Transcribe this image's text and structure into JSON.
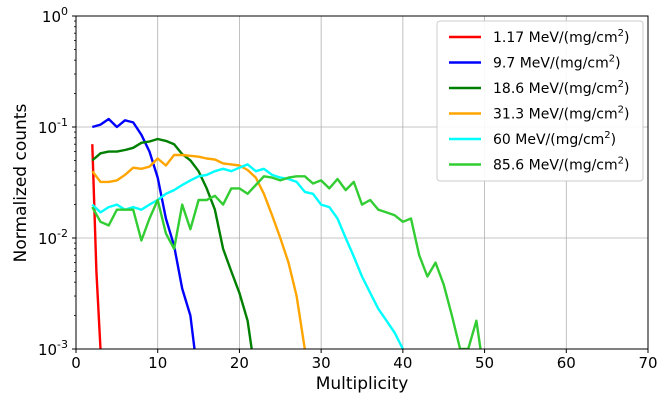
{
  "chart_data": {
    "type": "line",
    "xlabel": "Multiplicity",
    "ylabel": "Normalized counts",
    "xlim": [
      0,
      70
    ],
    "ylim": [
      0.001,
      1
    ],
    "yscale": "log",
    "grid": true,
    "legend_placement": "top-right",
    "x_ticks": [
      "0",
      "10",
      "20",
      "30",
      "40",
      "50",
      "60",
      "70"
    ],
    "y_ticks": [
      {
        "base": "10",
        "exp": "0",
        "value": 1
      },
      {
        "base": "10",
        "exp": "-1",
        "value": 0.1
      },
      {
        "base": "10",
        "exp": "-2",
        "value": 0.01
      },
      {
        "base": "10",
        "exp": "-3",
        "value": 0.001
      }
    ],
    "series": [
      {
        "name": "1.17 MeV/(mg/cm",
        "sup": "2",
        "name_end": ")",
        "color": "#ff0000",
        "x": [
          2,
          2.5,
          3
        ],
        "y": [
          0.07,
          0.005,
          0.001
        ]
      },
      {
        "name": "9.7 MeV/(mg/cm",
        "sup": "2",
        "name_end": ")",
        "color": "#0000ff",
        "x": [
          2,
          3,
          4,
          5,
          6,
          7,
          8,
          9,
          10,
          11,
          12,
          13,
          14,
          14.5
        ],
        "y": [
          0.1,
          0.105,
          0.118,
          0.1,
          0.115,
          0.11,
          0.085,
          0.06,
          0.035,
          0.015,
          0.0085,
          0.0035,
          0.002,
          0.001
        ]
      },
      {
        "name": "18.6 MeV/(mg/cm",
        "sup": "2",
        "name_end": ")",
        "color": "#008000",
        "x": [
          2,
          3,
          4,
          5,
          6,
          7,
          8,
          9,
          10,
          11,
          12,
          13,
          14,
          15,
          16,
          17,
          18,
          19,
          20,
          21,
          21.5
        ],
        "y": [
          0.05,
          0.058,
          0.06,
          0.06,
          0.062,
          0.065,
          0.072,
          0.074,
          0.078,
          0.075,
          0.07,
          0.057,
          0.05,
          0.04,
          0.028,
          0.018,
          0.008,
          0.005,
          0.0032,
          0.0018,
          0.001
        ]
      },
      {
        "name": "31.3 MeV/(mg/cm",
        "sup": "2",
        "name_end": ")",
        "color": "#ffa500",
        "x": [
          2,
          3,
          4,
          5,
          6,
          7,
          8,
          9,
          10,
          11,
          12,
          13,
          14,
          15,
          16,
          17,
          18,
          19,
          20,
          21,
          22,
          23,
          24,
          25,
          26,
          27,
          28
        ],
        "y": [
          0.04,
          0.032,
          0.032,
          0.033,
          0.037,
          0.043,
          0.042,
          0.044,
          0.052,
          0.045,
          0.056,
          0.056,
          0.055,
          0.054,
          0.052,
          0.051,
          0.047,
          0.046,
          0.045,
          0.041,
          0.035,
          0.025,
          0.016,
          0.01,
          0.006,
          0.003,
          0.001
        ]
      },
      {
        "name": "60 MeV/(mg/cm",
        "sup": "2",
        "name_end": ")",
        "color": "#00ffff",
        "x": [
          2,
          3,
          4,
          5,
          6,
          7,
          8,
          9,
          10,
          11,
          12,
          13,
          14,
          15,
          16,
          17,
          18,
          19,
          20,
          21,
          22,
          23,
          24,
          25,
          26,
          27,
          28,
          29,
          30,
          31,
          32,
          33,
          34,
          35,
          36,
          37,
          38,
          39,
          40
        ],
        "y": [
          0.02,
          0.017,
          0.019,
          0.02,
          0.018,
          0.019,
          0.018,
          0.02,
          0.022,
          0.025,
          0.027,
          0.03,
          0.033,
          0.036,
          0.037,
          0.04,
          0.042,
          0.04,
          0.043,
          0.046,
          0.04,
          0.042,
          0.037,
          0.035,
          0.034,
          0.032,
          0.026,
          0.025,
          0.02,
          0.019,
          0.015,
          0.01,
          0.0068,
          0.0045,
          0.0032,
          0.0023,
          0.0018,
          0.0014,
          0.001
        ]
      },
      {
        "name": "85.6 MeV/(mg/cm",
        "sup": "2",
        "name_end": ")",
        "color": "#32cd32",
        "x": [
          2,
          3,
          4,
          5,
          6,
          7,
          8,
          9,
          10,
          11,
          12,
          13,
          14,
          15,
          16,
          17,
          18,
          19,
          20,
          21,
          22,
          23,
          24,
          25,
          26,
          27,
          28,
          29,
          30,
          31,
          32,
          33,
          34,
          35,
          36,
          37,
          38,
          39,
          40,
          41,
          42,
          43,
          44,
          45,
          46,
          47,
          48,
          49,
          49.5
        ],
        "y": [
          0.019,
          0.014,
          0.013,
          0.018,
          0.018,
          0.018,
          0.0095,
          0.015,
          0.022,
          0.011,
          0.008,
          0.02,
          0.012,
          0.022,
          0.022,
          0.024,
          0.02,
          0.028,
          0.028,
          0.025,
          0.03,
          0.036,
          0.035,
          0.033,
          0.035,
          0.036,
          0.036,
          0.031,
          0.033,
          0.028,
          0.034,
          0.027,
          0.032,
          0.02,
          0.022,
          0.018,
          0.017,
          0.016,
          0.014,
          0.015,
          0.007,
          0.0045,
          0.006,
          0.0038,
          0.002,
          0.001,
          0.001,
          0.0018,
          0.001
        ]
      }
    ]
  }
}
